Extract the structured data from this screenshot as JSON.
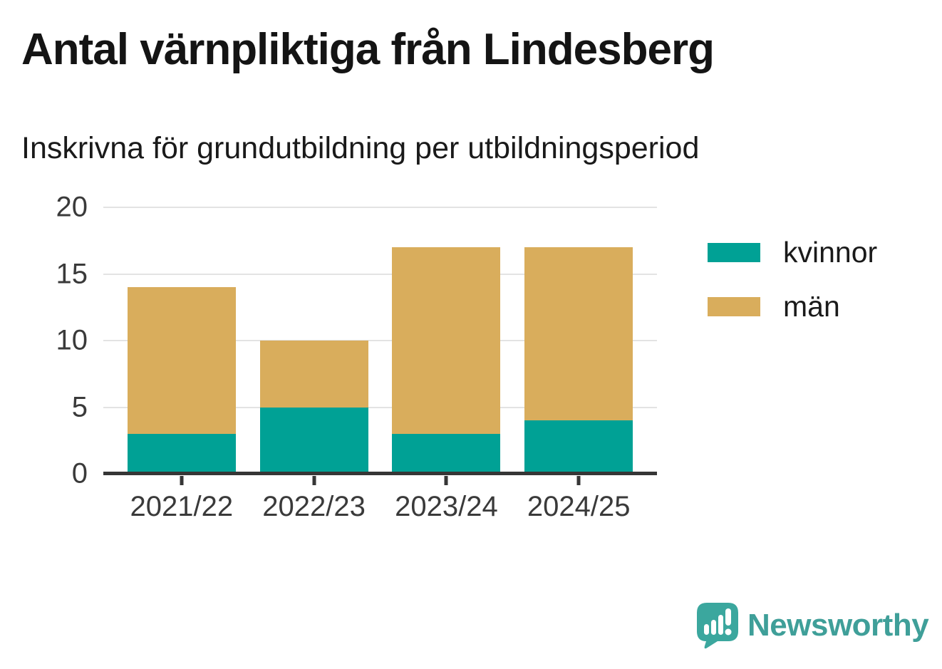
{
  "header": {
    "title": "Antal värnpliktiga från Lindesberg",
    "subtitle": "Inskrivna för grundutbildning per utbildningsperiod"
  },
  "chart_data": {
    "type": "bar",
    "stacked": true,
    "categories": [
      "2021/22",
      "2022/23",
      "2023/24",
      "2024/25"
    ],
    "series": [
      {
        "name": "kvinnor",
        "color": "#00a195",
        "values": [
          3,
          5,
          3,
          4
        ]
      },
      {
        "name": "män",
        "color": "#d9ad5c",
        "values": [
          11,
          5,
          14,
          13
        ]
      }
    ],
    "totals": [
      14,
      10,
      17,
      17
    ],
    "title": "Antal värnpliktiga från Lindesberg",
    "xlabel": "",
    "ylabel": "",
    "ylim": [
      0,
      20
    ],
    "yticks": [
      0,
      5,
      10,
      15,
      20
    ],
    "grid": "horizontal",
    "legend_position": "right",
    "axis_color": "#363636",
    "gridline_color": "#e3e3e3"
  },
  "footer": {
    "brand": "Newsworthy",
    "brand_color": "#3f9f99"
  }
}
